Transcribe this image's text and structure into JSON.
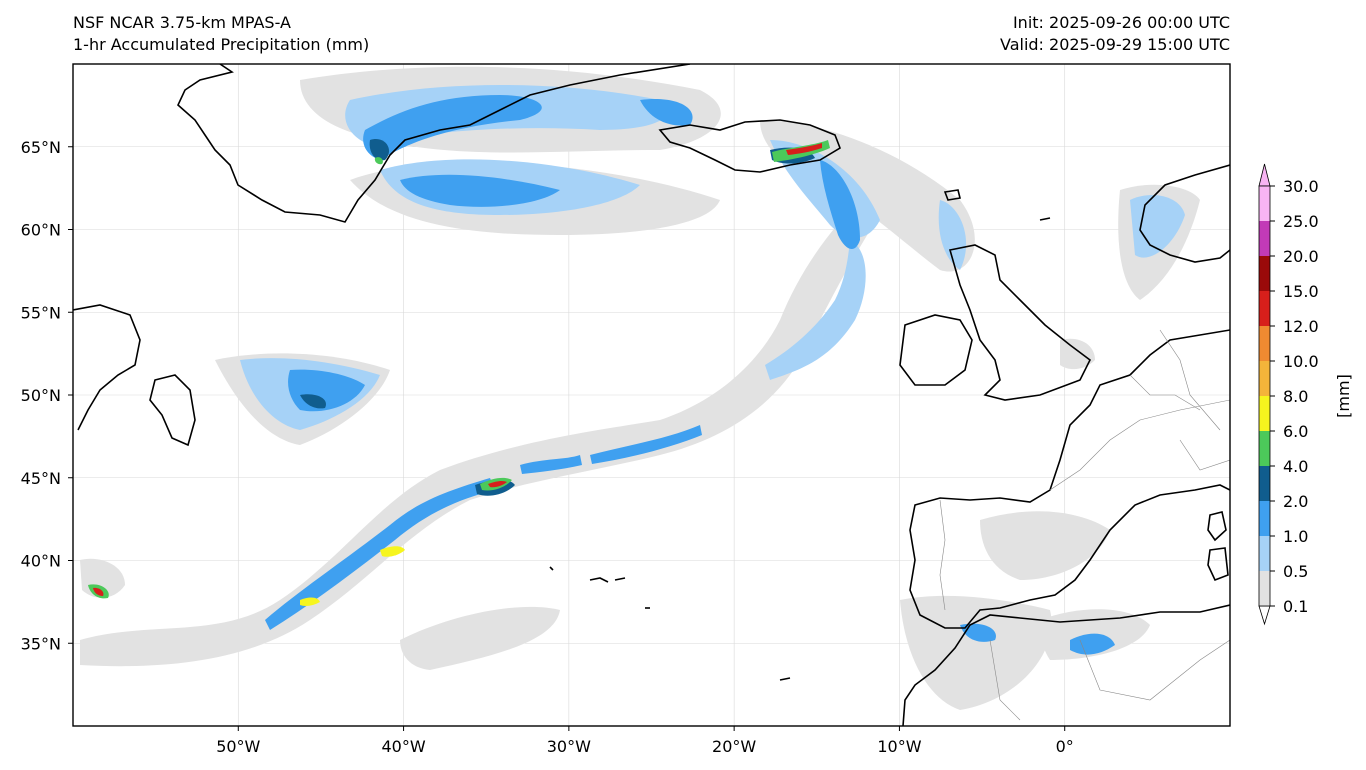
{
  "header": {
    "model": "NSF NCAR 3.75-km MPAS-A",
    "field": "1-hr Accumulated Precipitation (mm)",
    "init": "Init: 2025-09-26 00:00 UTC",
    "valid": "Valid: 2025-09-29 15:00 UTC"
  },
  "map": {
    "extent": {
      "lon": [
        -60,
        10
      ],
      "lat": [
        30,
        70
      ]
    },
    "lat_ticks": [
      {
        "lat": 35,
        "label": "35°N"
      },
      {
        "lat": 40,
        "label": "40°N"
      },
      {
        "lat": 45,
        "label": "45°N"
      },
      {
        "lat": 50,
        "label": "50°N"
      },
      {
        "lat": 55,
        "label": "55°N"
      },
      {
        "lat": 60,
        "label": "60°N"
      },
      {
        "lat": 65,
        "label": "65°N"
      }
    ],
    "lon_ticks": [
      {
        "lon": -50,
        "label": "50°W"
      },
      {
        "lon": -40,
        "label": "40°W"
      },
      {
        "lon": -30,
        "label": "30°W"
      },
      {
        "lon": -20,
        "label": "20°W"
      },
      {
        "lon": -10,
        "label": "10°W"
      },
      {
        "lon": 0,
        "label": "0°"
      }
    ],
    "gridlines": true
  },
  "colorbar": {
    "unit_label": "[mm]",
    "levels": [
      {
        "value": "0.1",
        "color": "#e2e2e2"
      },
      {
        "value": "0.5",
        "color": "#a6d2f7"
      },
      {
        "value": "1.0",
        "color": "#3fa0f0"
      },
      {
        "value": "2.0",
        "color": "#105d8e"
      },
      {
        "value": "4.0",
        "color": "#4cc95a"
      },
      {
        "value": "6.0",
        "color": "#f6f51e"
      },
      {
        "value": "8.0",
        "color": "#f4b43a"
      },
      {
        "value": "10.0",
        "color": "#ef8a31"
      },
      {
        "value": "12.0",
        "color": "#d71f1b"
      },
      {
        "value": "15.0",
        "color": "#9a0a0a"
      },
      {
        "value": "20.0",
        "color": "#c23ab7"
      },
      {
        "value": "25.0",
        "color": "#f8b4f3"
      },
      {
        "value": "30.0",
        "color": ""
      }
    ],
    "over_color": "#f8b4f3",
    "under_color": "#ffffff"
  }
}
